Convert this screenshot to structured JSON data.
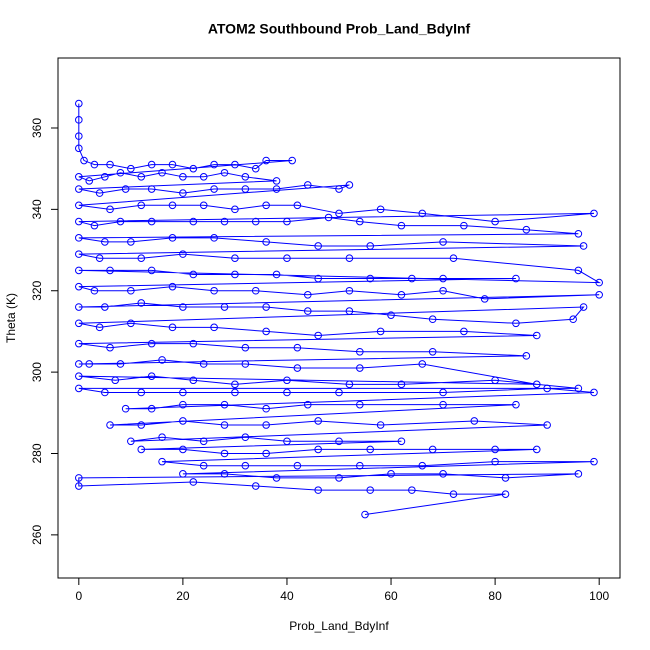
{
  "chart_data": {
    "type": "line",
    "title": "ATOM2 Southbound Prob_Land_BdyInf",
    "x_label": "Prob_Land_BdyInf",
    "y_label": "Theta (K)",
    "xlim": [
      -4,
      104
    ],
    "ylim": [
      249.4,
      377.2
    ],
    "xticks": [
      0,
      20,
      40,
      60,
      80,
      100
    ],
    "yticks": [
      260,
      280,
      300,
      320,
      340,
      360
    ],
    "markers": true,
    "x": [
      0,
      0,
      0,
      0,
      1,
      3,
      6,
      10,
      14,
      18,
      22,
      26,
      30,
      34,
      36,
      41,
      0,
      2,
      5,
      8,
      12,
      16,
      20,
      24,
      28,
      32,
      38,
      0,
      4,
      9,
      14,
      20,
      26,
      32,
      38,
      44,
      50,
      52,
      0,
      6,
      12,
      18,
      24,
      30,
      36,
      42,
      50,
      58,
      66,
      80,
      99,
      0,
      3,
      8,
      14,
      22,
      28,
      34,
      40,
      48,
      54,
      62,
      74,
      86,
      96,
      0,
      5,
      10,
      18,
      26,
      36,
      46,
      56,
      70,
      97,
      0,
      4,
      12,
      20,
      30,
      40,
      52,
      72,
      96,
      100,
      0,
      6,
      14,
      22,
      30,
      38,
      46,
      56,
      64,
      70,
      84,
      0,
      3,
      10,
      18,
      26,
      34,
      44,
      52,
      62,
      70,
      78,
      100,
      0,
      5,
      12,
      20,
      28,
      36,
      44,
      52,
      60,
      68,
      84,
      95,
      97,
      0,
      4,
      10,
      18,
      26,
      36,
      46,
      58,
      74,
      88,
      0,
      6,
      14,
      22,
      32,
      42,
      54,
      68,
      86,
      0,
      2,
      8,
      16,
      24,
      32,
      42,
      54,
      66,
      88,
      0,
      7,
      14,
      22,
      30,
      40,
      52,
      62,
      80,
      96,
      0,
      5,
      12,
      20,
      30,
      40,
      50,
      70,
      90,
      99,
      9,
      14,
      20,
      28,
      36,
      44,
      54,
      70,
      84,
      6,
      12,
      20,
      28,
      36,
      46,
      58,
      76,
      90,
      10,
      16,
      24,
      32,
      40,
      50,
      62,
      12,
      20,
      28,
      36,
      46,
      56,
      68,
      80,
      88,
      16,
      24,
      32,
      42,
      54,
      66,
      80,
      99,
      20,
      28,
      38,
      50,
      60,
      70,
      82,
      96,
      0,
      0,
      22,
      34,
      46,
      56,
      64,
      72,
      82,
      55
    ],
    "series": [
      {
        "color": "#0000ff",
        "values": [
          366,
          362,
          358,
          355,
          352,
          351,
          351,
          350,
          351,
          351,
          350,
          351,
          351,
          350,
          352,
          352,
          348,
          347,
          348,
          349,
          348,
          349,
          348,
          348,
          349,
          348,
          347,
          345,
          344,
          345,
          345,
          344,
          345,
          345,
          345,
          346,
          345,
          346,
          341,
          340,
          341,
          341,
          341,
          340,
          341,
          341,
          339,
          340,
          339,
          337,
          339,
          337,
          336,
          337,
          337,
          337,
          337,
          337,
          337,
          338,
          337,
          336,
          336,
          335,
          334,
          333,
          332,
          332,
          333,
          333,
          332,
          331,
          331,
          332,
          331,
          329,
          328,
          328,
          329,
          328,
          328,
          328,
          328,
          325,
          322,
          325,
          325,
          325,
          324,
          324,
          324,
          323,
          323,
          323,
          323,
          323,
          321,
          320,
          320,
          321,
          320,
          320,
          319,
          320,
          319,
          320,
          318,
          319,
          316,
          316,
          317,
          316,
          316,
          316,
          315,
          315,
          314,
          313,
          312,
          313,
          316,
          312,
          311,
          312,
          311,
          311,
          310,
          309,
          310,
          310,
          309,
          307,
          306,
          307,
          307,
          306,
          306,
          305,
          305,
          304,
          302,
          302,
          302,
          303,
          302,
          302,
          301,
          301,
          302,
          297,
          299,
          298,
          299,
          298,
          297,
          298,
          297,
          297,
          298,
          296,
          296,
          295,
          295,
          295,
          295,
          295,
          295,
          295,
          296,
          295,
          291,
          291,
          292,
          292,
          291,
          292,
          292,
          292,
          292,
          287,
          287,
          288,
          287,
          287,
          288,
          287,
          288,
          287,
          283,
          284,
          283,
          284,
          283,
          283,
          283,
          281,
          281,
          280,
          280,
          281,
          281,
          281,
          281,
          281,
          278,
          277,
          277,
          277,
          277,
          277,
          278,
          278,
          275,
          275,
          274,
          274,
          275,
          275,
          274,
          275,
          274,
          272,
          273,
          272,
          271,
          271,
          271,
          270,
          270,
          265
        ]
      }
    ]
  }
}
